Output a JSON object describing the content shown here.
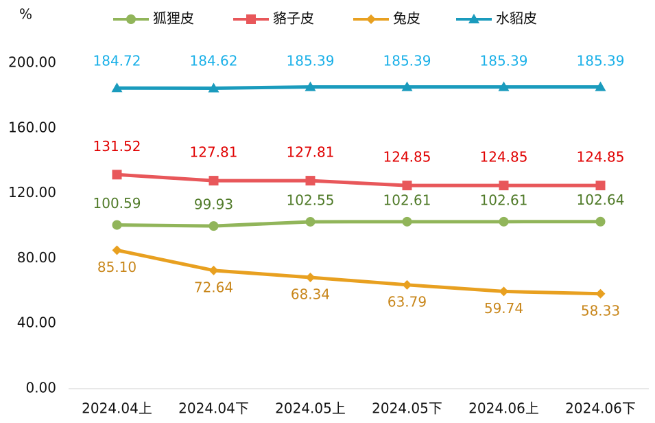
{
  "chart_data": {
    "type": "line",
    "y_unit": "%",
    "categories": [
      "2024.04上",
      "2024.04下",
      "2024.05上",
      "2024.05下",
      "2024.06上",
      "2024.06下"
    ],
    "series": [
      {
        "name": "狐狸皮",
        "color": "#91b55a",
        "label_color": "#4f7a28",
        "marker": "circle",
        "values": [
          100.59,
          99.93,
          102.55,
          102.61,
          102.61,
          102.64
        ],
        "value_labels": [
          "100.59",
          "99.93",
          "102.55",
          "102.61",
          "102.61",
          "102.64"
        ]
      },
      {
        "name": "貉子皮",
        "color": "#e8575a",
        "label_color": "#e00000",
        "marker": "square",
        "values": [
          131.52,
          127.81,
          127.81,
          124.85,
          124.85,
          124.85
        ],
        "value_labels": [
          "131.52",
          "127.81",
          "127.81",
          "124.85",
          "124.85",
          "124.85"
        ]
      },
      {
        "name": "兔皮",
        "color": "#e8a020",
        "label_color": "#c8861a",
        "marker": "diamond",
        "values": [
          85.1,
          72.64,
          68.34,
          63.79,
          59.74,
          58.33
        ],
        "value_labels": [
          "85.10",
          "72.64",
          "68.34",
          "63.79",
          "59.74",
          "58.33"
        ]
      },
      {
        "name": "水貂皮",
        "color": "#1a9bbd",
        "label_color": "#1ab0e8",
        "marker": "triangle",
        "values": [
          184.72,
          184.62,
          185.39,
          185.39,
          185.39,
          185.39
        ],
        "value_labels": [
          "184.72",
          "184.62",
          "185.39",
          "185.39",
          "185.39",
          "185.39"
        ]
      }
    ],
    "ylim": [
      0,
      220
    ],
    "yticks": [
      {
        "value": 0,
        "label": "0.00"
      },
      {
        "value": 40,
        "label": "40.00"
      },
      {
        "value": 80,
        "label": "80.00"
      },
      {
        "value": 120,
        "label": "120.00"
      },
      {
        "value": 160,
        "label": "160.00"
      },
      {
        "value": 200,
        "label": "200.00"
      }
    ]
  }
}
